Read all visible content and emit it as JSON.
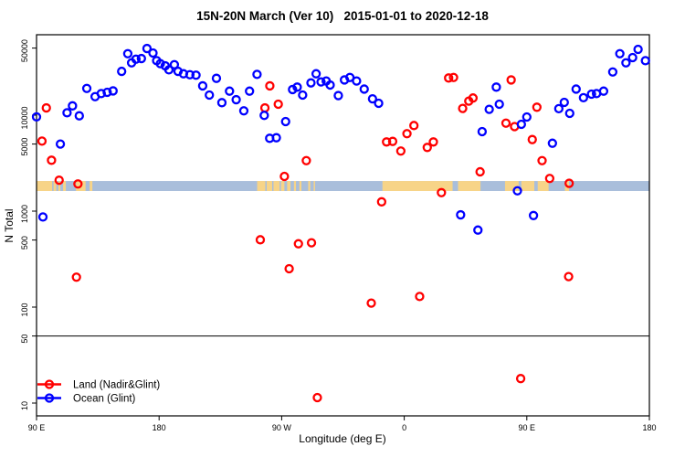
{
  "title": "15N-20N March (Ver 10)   2015-01-01 to 2020-12-18",
  "chart_data": {
    "type": "scatter",
    "title": "15N-20N March (Ver 10)   2015-01-01 to 2020-12-18",
    "xlabel": "Longitude (deg E)",
    "ylabel": "N Total",
    "x_axis": {
      "note": "axis spans 450 deg starting at 90E wrapping eastward; t = axis degrees",
      "range_t": [
        90,
        540
      ],
      "ticks": [
        {
          "t": 90,
          "label": "90 E"
        },
        {
          "t": 180,
          "label": "180"
        },
        {
          "t": 270,
          "label": "90 W"
        },
        {
          "t": 360,
          "label": "0"
        },
        {
          "t": 450,
          "label": "90 E"
        },
        {
          "t": 540,
          "label": "180"
        }
      ]
    },
    "y_axis": {
      "scale": "log10",
      "range": [
        9,
        62000
      ],
      "ticks": [
        10,
        50,
        100,
        500,
        1000,
        5000,
        10000,
        50000
      ],
      "tick_labels": [
        "10",
        "50",
        "100",
        "500",
        "1000",
        "5000",
        "10000",
        "50000"
      ]
    },
    "reference_line_n": 50,
    "map_band": {
      "description": "15N-20N latitude strip: ocean blue with land segments",
      "n_range": [
        1620,
        2060
      ],
      "ocean_color": "#a9bedb",
      "land_color": "#f7d488",
      "land_segments_t": [
        [
          90,
          101.5
        ],
        [
          102.5,
          104.5
        ],
        [
          106,
          107.5
        ],
        [
          109.5,
          111.5
        ],
        [
          119,
          126
        ],
        [
          129,
          131
        ],
        [
          252,
          258
        ],
        [
          259,
          263
        ],
        [
          264,
          268.5
        ],
        [
          269.5,
          272
        ],
        [
          274,
          276.5
        ],
        [
          279,
          280.5
        ],
        [
          283,
          284.5
        ],
        [
          289.5,
          291
        ],
        [
          293.5,
          294.5
        ],
        [
          344,
          395.5
        ],
        [
          399.5,
          416
        ],
        [
          434,
          444
        ],
        [
          446,
          455.5
        ],
        [
          458,
          466
        ],
        [
          478,
          481
        ]
      ]
    },
    "legend": [
      {
        "label": "Land (Nadir&Glint)",
        "color": "#ff0000"
      },
      {
        "label": "Ocean (Glint)",
        "color": "#0000ff"
      }
    ],
    "series": [
      {
        "name": "Land (Nadir&Glint)",
        "color": "#ff0000",
        "points": [
          [
            97.2,
            11900
          ],
          [
            94,
            5370
          ],
          [
            101,
            3390
          ],
          [
            106.6,
            2100
          ],
          [
            120.4,
            1920
          ],
          [
            119.3,
            205
          ],
          [
            257.7,
            11900
          ],
          [
            261.3,
            20200
          ],
          [
            267.5,
            13000
          ],
          [
            272,
            2300
          ],
          [
            288.1,
            3360
          ],
          [
            254.3,
            503
          ],
          [
            275.5,
            251
          ],
          [
            282.3,
            457
          ],
          [
            291.9,
            468
          ],
          [
            296.2,
            11.4
          ],
          [
            335.8,
            110
          ],
          [
            347,
            5260
          ],
          [
            351.5,
            5330
          ],
          [
            357.5,
            4230
          ],
          [
            362,
            6410
          ],
          [
            367.1,
            7800
          ],
          [
            371.3,
            129
          ],
          [
            376.9,
            4610
          ],
          [
            381.4,
            5260
          ],
          [
            387.3,
            1560
          ],
          [
            343.4,
            1250
          ],
          [
            392.6,
            24400
          ],
          [
            396.2,
            24700
          ],
          [
            402.9,
            11750
          ],
          [
            407.4,
            14000
          ],
          [
            410.5,
            15100
          ],
          [
            415.7,
            2570
          ],
          [
            434.7,
            8260
          ],
          [
            438.5,
            23300
          ],
          [
            441,
            7600
          ],
          [
            457.4,
            12100
          ],
          [
            454,
            5570
          ],
          [
            461.2,
            3360
          ],
          [
            466.8,
            2190
          ],
          [
            481.1,
            1950
          ],
          [
            480.7,
            208
          ],
          [
            445.5,
            18
          ]
        ]
      },
      {
        "name": "Ocean (Glint)",
        "color": "#0000ff",
        "points": [
          [
            90,
            9600
          ],
          [
            107.5,
            5000
          ],
          [
            112.4,
            10600
          ],
          [
            116.4,
            12500
          ],
          [
            121.4,
            9850
          ],
          [
            126.9,
            19000
          ],
          [
            133,
            15600
          ],
          [
            137.5,
            16800
          ],
          [
            141.9,
            17300
          ],
          [
            146.2,
            17900
          ],
          [
            152.5,
            28600
          ],
          [
            157,
            43700
          ],
          [
            159.8,
            35100
          ],
          [
            163,
            38300
          ],
          [
            167,
            38900
          ],
          [
            171.1,
            49500
          ],
          [
            175.5,
            44400
          ],
          [
            178.2,
            37000
          ],
          [
            180.9,
            34400
          ],
          [
            184.5,
            32700
          ],
          [
            187.2,
            29700
          ],
          [
            191.2,
            33600
          ],
          [
            193.9,
            28600
          ],
          [
            197.9,
            27000
          ],
          [
            202.6,
            26400
          ],
          [
            207.1,
            26100
          ],
          [
            212,
            20200
          ],
          [
            216.9,
            16200
          ],
          [
            222.1,
            24200
          ],
          [
            226.1,
            13500
          ],
          [
            231.7,
            17800
          ],
          [
            236.6,
            14500
          ],
          [
            242.2,
            11100
          ],
          [
            246.4,
            17800
          ],
          [
            251.9,
            26600
          ],
          [
            257.2,
            9950
          ],
          [
            261.2,
            5740
          ],
          [
            266.1,
            5820
          ],
          [
            272.9,
            8570
          ],
          [
            278,
            18500
          ],
          [
            281.4,
            19600
          ],
          [
            285.4,
            16200
          ],
          [
            291.5,
            21700
          ],
          [
            295.3,
            27000
          ],
          [
            298.9,
            22200
          ],
          [
            302.7,
            22700
          ],
          [
            305.6,
            20600
          ],
          [
            311.6,
            16000
          ],
          [
            316.1,
            23300
          ],
          [
            320.1,
            24700
          ],
          [
            325,
            22700
          ],
          [
            330.6,
            18700
          ],
          [
            336.7,
            14800
          ],
          [
            341.2,
            13300
          ],
          [
            94.7,
            870
          ],
          [
            401.4,
            915
          ],
          [
            414.1,
            635
          ],
          [
            417.2,
            6740
          ],
          [
            422.4,
            11500
          ],
          [
            427.6,
            19600
          ],
          [
            429.8,
            13000
          ],
          [
            443.1,
            1630
          ],
          [
            446,
            8030
          ],
          [
            450,
            9570
          ],
          [
            454.9,
            900
          ],
          [
            468.8,
            5100
          ],
          [
            473.5,
            11700
          ],
          [
            477.5,
            13600
          ],
          [
            481.5,
            10450
          ],
          [
            486.2,
            18700
          ],
          [
            491.6,
            15200
          ],
          [
            497.5,
            16550
          ],
          [
            501.2,
            16800
          ],
          [
            506.4,
            17800
          ],
          [
            513.1,
            28200
          ],
          [
            518.3,
            43700
          ],
          [
            522.8,
            35100
          ],
          [
            527.7,
            39800
          ],
          [
            531.7,
            48500
          ],
          [
            537.1,
            37000
          ]
        ]
      }
    ]
  }
}
